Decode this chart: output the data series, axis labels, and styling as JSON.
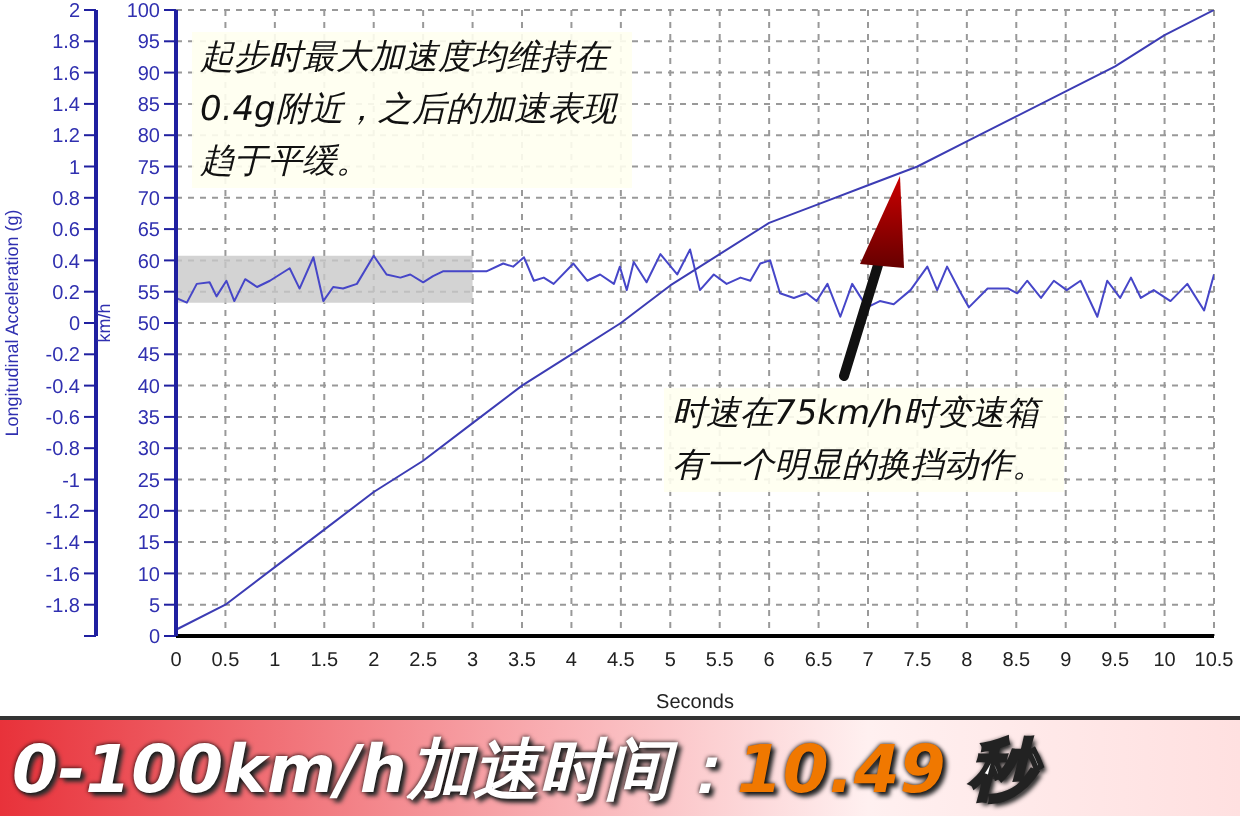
{
  "chart_data": {
    "type": "line",
    "xlabel": "Seconds",
    "ylabel": "Longitudinal Acceleration (g)",
    "y2label": "km/h",
    "xlim": [
      0,
      10.5
    ],
    "xticks": [
      0,
      0.5,
      1,
      1.5,
      2,
      2.5,
      3,
      3.5,
      4,
      4.5,
      5,
      5.5,
      6,
      6.5,
      7,
      7.5,
      8,
      8.5,
      9,
      9.5,
      10,
      10.5
    ],
    "ylim": [
      -2,
      2
    ],
    "yticks": [
      {
        "value": -2,
        "label": null
      },
      -1.8,
      -1.6,
      -1.4,
      -1.2,
      -1,
      -0.8,
      -0.6,
      -0.4,
      -0.2,
      0,
      0.2,
      0.4,
      0.6,
      0.8,
      1,
      1.2,
      1.4,
      1.6,
      1.8,
      2
    ],
    "y2lim": [
      0,
      100
    ],
    "y2ticks": [
      0,
      5,
      10,
      15,
      20,
      25,
      30,
      35,
      40,
      45,
      50,
      55,
      60,
      65,
      70,
      75,
      80,
      85,
      90,
      95,
      100
    ],
    "grid": true,
    "marker": "none",
    "line_style": "solid",
    "series": [
      {
        "color": "#4646c8",
        "x": [
          0,
          0.11,
          0.21,
          0.34,
          0.41,
          0.51,
          0.59,
          0.7,
          0.82,
          0.95,
          1.05,
          1.15,
          1.25,
          1.39,
          1.49,
          1.59,
          1.69,
          1.83,
          2,
          2.13,
          2.27,
          2.37,
          2.5,
          2.6,
          2.7,
          2.81,
          2.98,
          3.14,
          3.31,
          3.41,
          3.52,
          3.62,
          3.72,
          3.82,
          4.02,
          4.16,
          4.29,
          4.43,
          4.49,
          4.56,
          4.63,
          4.76,
          4.9,
          5.07,
          5.2,
          5.3,
          5.44,
          5.57,
          5.71,
          5.81,
          5.91,
          6.01,
          6.11,
          6.25,
          6.38,
          6.48,
          6.59,
          6.72,
          6.84,
          6.99,
          7.12,
          7.26,
          7.43,
          7.6,
          7.7,
          7.8,
          7.94,
          8.02,
          8.21,
          8.42,
          8.51,
          8.61,
          8.75,
          8.88,
          9.01,
          9.15,
          9.32,
          9.42,
          9.55,
          9.66,
          9.76,
          9.89,
          10.06,
          10.23,
          10.4,
          10.5
        ],
        "values": [
          0.16,
          0.13,
          0.25,
          0.26,
          0.17,
          0.27,
          0.14,
          0.28,
          0.23,
          0.27,
          0.31,
          0.35,
          0.22,
          0.42,
          0.14,
          0.23,
          0.22,
          0.25,
          0.43,
          0.31,
          0.29,
          0.31,
          0.26,
          0.3,
          0.33,
          0.33,
          0.33,
          0.33,
          0.38,
          0.36,
          0.42,
          0.27,
          0.29,
          0.25,
          0.38,
          0.27,
          0.31,
          0.25,
          0.36,
          0.21,
          0.39,
          0.26,
          0.44,
          0.31,
          0.47,
          0.21,
          0.31,
          0.25,
          0.29,
          0.27,
          0.38,
          0.4,
          0.19,
          0.16,
          0.19,
          0.14,
          0.25,
          0.04,
          0.25,
          0.1,
          0.14,
          0.12,
          0.21,
          0.36,
          0.21,
          0.36,
          0.19,
          0.1,
          0.22,
          0.22,
          0.19,
          0.27,
          0.16,
          0.27,
          0.21,
          0.27,
          0.04,
          0.27,
          0.16,
          0.29,
          0.16,
          0.21,
          0.14,
          0.25,
          0.08,
          0.31
        ]
      },
      {
        "color": "#3c3cb4",
        "axis": "y2",
        "x": [
          0,
          0.5,
          1,
          1.5,
          2,
          2.5,
          3,
          3.5,
          4,
          4.5,
          5,
          5.5,
          6,
          6.5,
          7,
          7.5,
          8,
          8.5,
          9,
          9.5,
          10,
          10.5
        ],
        "values": [
          1,
          5,
          11,
          17,
          23,
          28,
          34,
          40,
          45,
          50,
          56,
          61,
          66,
          69,
          72,
          75,
          79,
          83,
          87,
          91,
          96,
          100
        ]
      }
    ],
    "bands": [
      {
        "axis": "x",
        "from": 0,
        "to": 3,
        "color": "#c8c8c8"
      }
    ],
    "annotations": [
      "起步时最大加速度均维持在0.4g附近，之后的加速表现趋于平缓。",
      "时速在75km/h时变速箱有一个明显的换挡动作。",
      "0-100km/h加速时间：10.49 秒"
    ]
  }
}
